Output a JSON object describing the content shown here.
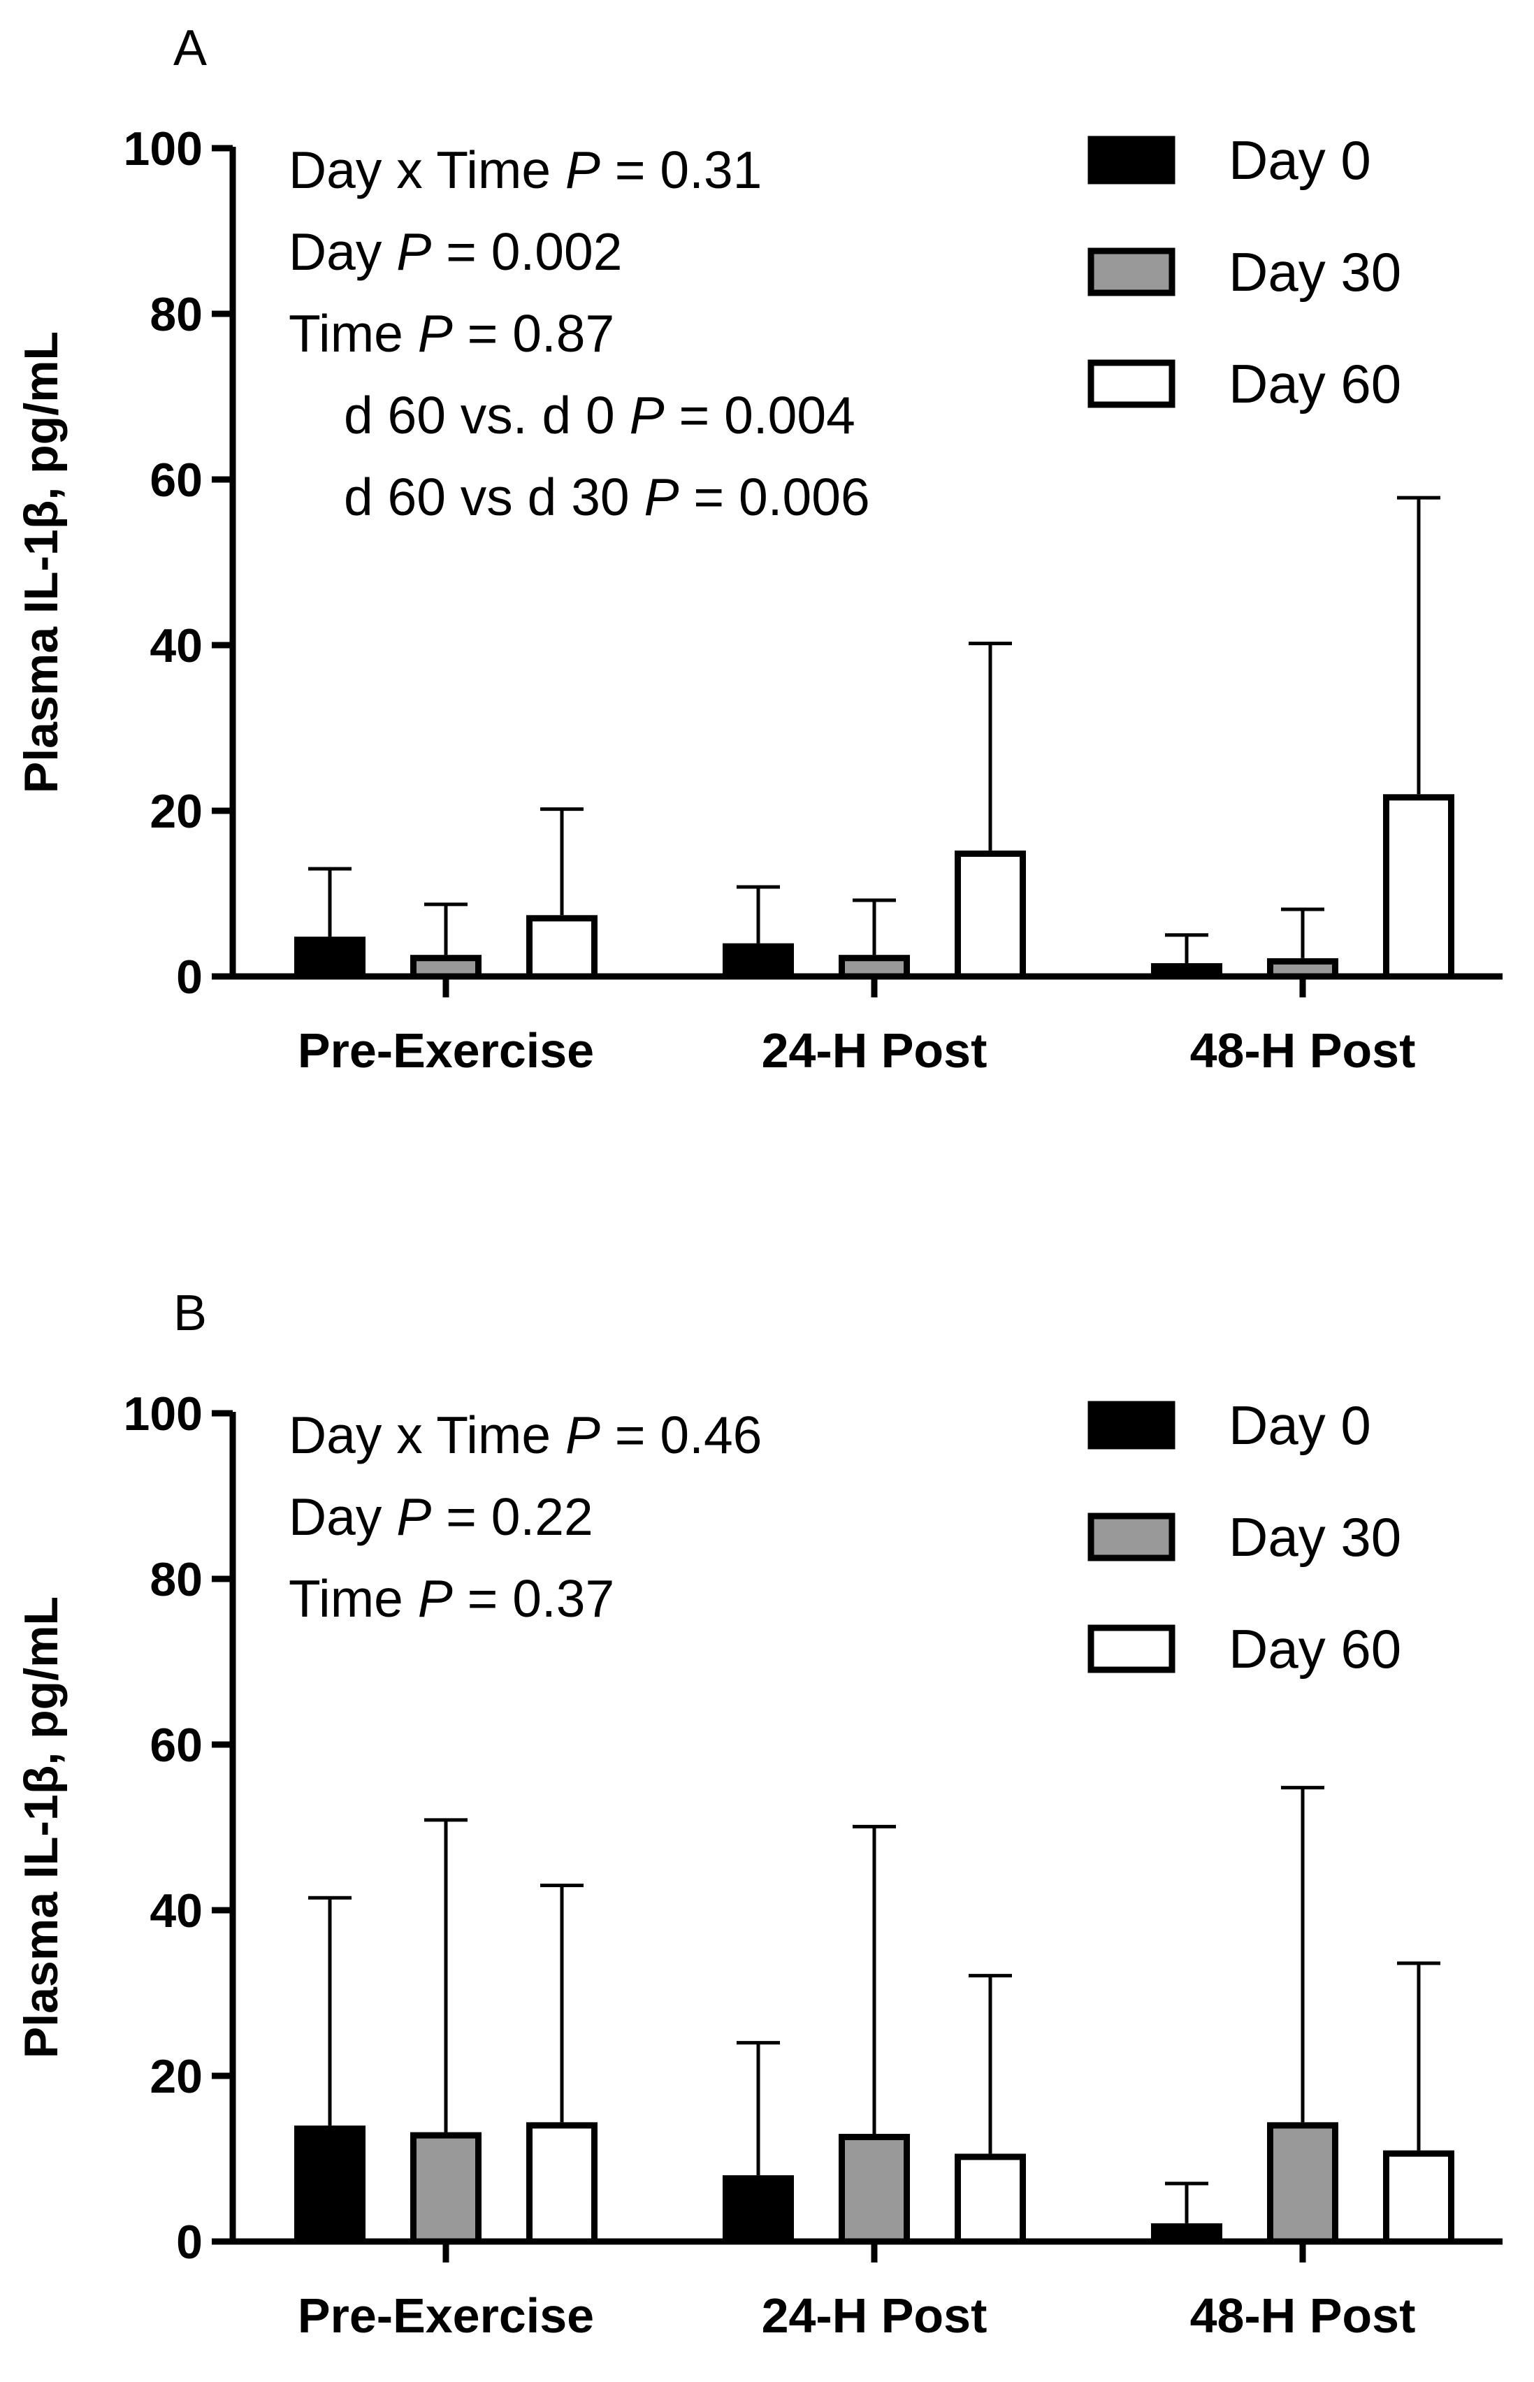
{
  "chart_data": [
    {
      "panel_label": "A",
      "type": "bar",
      "title": "",
      "xlabel": "",
      "ylabel": "Plasma IL-1β, pg/mL",
      "ylim": [
        0,
        100
      ],
      "yticks": [
        "0",
        "20",
        "40",
        "60",
        "80",
        "100"
      ],
      "grid": false,
      "legend_position": "top-right",
      "categories": [
        "Pre-Exercise",
        "24-H Post",
        "48-H Post"
      ],
      "series": [
        {
          "name": "Day 0",
          "color": "#000000",
          "values": [
            4.8,
            4.0,
            1.6
          ],
          "errors": [
            8.2,
            6.8,
            3.4
          ]
        },
        {
          "name": "Day 30",
          "color": "#999999",
          "values": [
            2.6,
            2.6,
            2.2
          ],
          "errors": [
            6.1,
            6.6,
            5.9
          ]
        },
        {
          "name": "Day 60",
          "color": "#ffffff",
          "values": [
            7.4,
            15.2,
            22.0
          ],
          "errors": [
            12.8,
            25.0,
            35.8
          ]
        }
      ],
      "annotations": [
        {
          "parts": [
            {
              "t": "Day x  Time "
            },
            {
              "t": "P",
              "i": true
            },
            {
              "t": " = 0.31"
            }
          ]
        },
        {
          "parts": [
            {
              "t": "Day "
            },
            {
              "t": "P",
              "i": true
            },
            {
              "t": " = 0.002"
            }
          ]
        },
        {
          "parts": [
            {
              "t": "Time "
            },
            {
              "t": "P",
              "i": true
            },
            {
              "t": " = 0.87"
            }
          ]
        },
        {
          "indent": true,
          "parts": [
            {
              "t": "d 60 vs. d 0 "
            },
            {
              "t": "P",
              "i": true
            },
            {
              "t": " = 0.004"
            }
          ]
        },
        {
          "indent": true,
          "parts": [
            {
              "t": "d 60 vs d 30 "
            },
            {
              "t": "P",
              "i": true
            },
            {
              "t": " = 0.006"
            }
          ]
        }
      ]
    },
    {
      "panel_label": "B",
      "type": "bar",
      "title": "",
      "xlabel": "",
      "ylabel": "Plasma IL-1β, pg/mL",
      "ylim": [
        0,
        100
      ],
      "yticks": [
        "0",
        "20",
        "40",
        "60",
        "80",
        "100"
      ],
      "grid": false,
      "legend_position": "top-right",
      "categories": [
        "Pre-Exercise",
        "24-H Post",
        "48-H Post"
      ],
      "series": [
        {
          "name": "Day 0",
          "color": "#000000",
          "values": [
            14.0,
            8.0,
            2.2
          ],
          "errors": [
            27.5,
            16.0,
            4.8
          ]
        },
        {
          "name": "Day 30",
          "color": "#999999",
          "values": [
            13.2,
            13.0,
            14.4
          ],
          "errors": [
            37.7,
            37.1,
            40.4
          ]
        },
        {
          "name": "Day 60",
          "color": "#ffffff",
          "values": [
            14.4,
            10.6,
            11.0
          ],
          "errors": [
            28.6,
            21.5,
            22.6
          ]
        }
      ],
      "annotations": [
        {
          "parts": [
            {
              "t": "Day x  Time "
            },
            {
              "t": "P",
              "i": true
            },
            {
              "t": " = 0.46"
            }
          ]
        },
        {
          "parts": [
            {
              "t": "Day "
            },
            {
              "t": "P",
              "i": true
            },
            {
              "t": " = 0.22"
            }
          ]
        },
        {
          "parts": [
            {
              "t": "Time "
            },
            {
              "t": "P",
              "i": true
            },
            {
              "t": " = 0.37"
            }
          ]
        }
      ]
    }
  ]
}
